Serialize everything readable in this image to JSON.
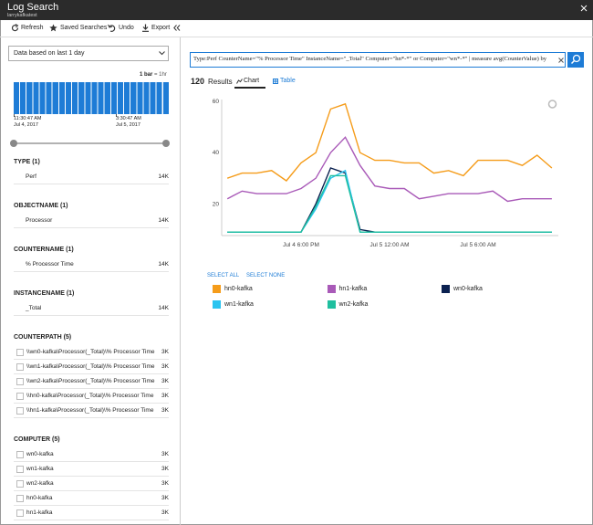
{
  "header": {
    "title": "Log Search",
    "subtitle": "larrykafkatest"
  },
  "toolbar": [
    "Refresh",
    "Saved Searches",
    "Undo",
    "Export"
  ],
  "time_filter": "Data based on last 1 day",
  "histogram": {
    "bar_label": [
      "1 bar",
      "= 1hr"
    ],
    "start": [
      "11:30:47 AM",
      "Jul 4, 2017"
    ],
    "end": [
      "3:30:47 AM",
      "Jul 5, 2017"
    ]
  },
  "facets": [
    {
      "title": "TYPE (1)",
      "items": [
        [
          "Perf",
          "14K"
        ]
      ]
    },
    {
      "title": "OBJECTNAME (1)",
      "items": [
        [
          "Processor",
          "14K"
        ]
      ]
    },
    {
      "title": "COUNTERNAME (1)",
      "items": [
        [
          "% Processor Time",
          "14K"
        ]
      ]
    },
    {
      "title": "INSTANCENAME (1)",
      "items": [
        [
          "_Total",
          "14K"
        ]
      ]
    },
    {
      "title": "COUNTERPATH (5)",
      "items": [
        [
          "\\\\wn0-kafka\\Processor(_Total)\\% Processor Time",
          "3K"
        ],
        [
          "\\\\wn1-kafka\\Processor(_Total)\\% Processor Time",
          "3K"
        ],
        [
          "\\\\wn2-kafka\\Processor(_Total)\\% Processor Time",
          "3K"
        ],
        [
          "\\\\hn0-kafka\\Processor(_Total)\\% Processor Time",
          "3K"
        ],
        [
          "\\\\hn1-kafka\\Processor(_Total)\\% Processor Time",
          "3K"
        ]
      ]
    },
    {
      "title": "COMPUTER (5)",
      "items": [
        [
          "wn0-kafka",
          "3K"
        ],
        [
          "wn1-kafka",
          "3K"
        ],
        [
          "wn2-kafka",
          "3K"
        ],
        [
          "hn0-kafka",
          "3K"
        ],
        [
          "hn1-kafka",
          "3K"
        ]
      ]
    }
  ],
  "query": "Type:Perf CounterName=\"% Processor Time\" InstanceName=\"_Total\" Computer=\"hn*-*\" or Computer=\"wn*-*\" | measure avg(CounterValue) by",
  "results": [
    "120",
    "Results"
  ],
  "tabs": [
    "Chart",
    "Table"
  ],
  "legend_actions": [
    "SELECT ALL",
    "SELECT NONE"
  ],
  "chart_data": {
    "type": "line",
    "categories": [
      null,
      null,
      null,
      null,
      null,
      "Jul 4 6:00 PM",
      null,
      null,
      null,
      null,
      null,
      "Jul 5 12:00 AM",
      null,
      null,
      null,
      null,
      null,
      "Jul 5 6:00 AM",
      null,
      null,
      null,
      null,
      null
    ],
    "ylim": [
      8,
      60
    ],
    "yticks": [
      20,
      40,
      60
    ],
    "grid": false,
    "series": [
      {
        "name": "hn0-kafka",
        "color": "#f59c1a",
        "values": [
          30,
          32,
          32,
          33,
          29,
          36,
          40,
          57,
          59,
          40,
          37,
          37,
          36,
          36,
          32,
          33,
          31,
          37,
          37,
          37,
          35,
          39,
          34
        ]
      },
      {
        "name": "hn1-kafka",
        "color": "#a95ab8",
        "values": [
          22,
          25,
          24,
          24,
          24,
          26,
          30,
          40,
          46,
          35,
          27,
          26,
          26,
          22,
          23,
          24,
          24,
          24,
          25,
          21,
          22,
          22,
          22
        ]
      },
      {
        "name": "wn0-kafka",
        "color": "#0b2150",
        "values": [
          9,
          9,
          9,
          9,
          9,
          9,
          20,
          34,
          32,
          10,
          9,
          9,
          9,
          9,
          9,
          9,
          9,
          9,
          9,
          9,
          9,
          9,
          9
        ]
      },
      {
        "name": "wn1-kafka",
        "color": "#2ac4f0",
        "values": [
          9,
          9,
          9,
          9,
          9,
          9,
          18,
          30,
          33,
          9,
          9,
          9,
          9,
          9,
          9,
          9,
          9,
          9,
          9,
          9,
          9,
          9,
          9
        ]
      },
      {
        "name": "wn2-kafka",
        "color": "#1fbf9f",
        "values": [
          9,
          9,
          9,
          9,
          9,
          9,
          19,
          31,
          31,
          9,
          9,
          9,
          9,
          9,
          9,
          9,
          9,
          9,
          9,
          9,
          9,
          9,
          9
        ]
      }
    ]
  }
}
